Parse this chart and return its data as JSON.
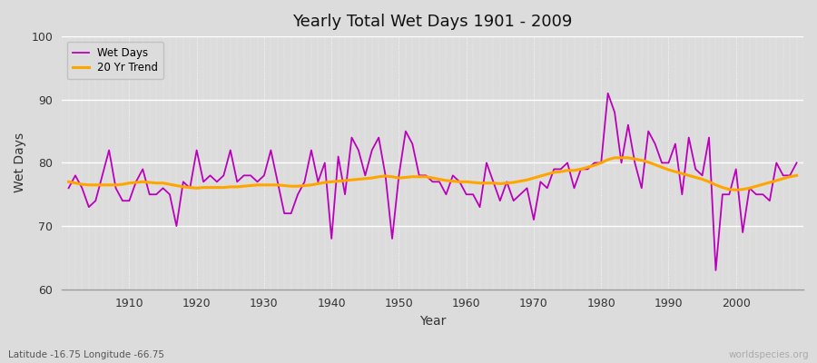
{
  "title": "Yearly Total Wet Days 1901 - 2009",
  "xlabel": "Year",
  "ylabel": "Wet Days",
  "subtitle": "Latitude -16.75 Longitude -66.75",
  "watermark": "worldspecies.org",
  "ylim": [
    60,
    100
  ],
  "yticks": [
    60,
    70,
    80,
    90,
    100
  ],
  "line_color": "#BB00BB",
  "trend_color": "#FFA500",
  "bg_color": "#DCDCDC",
  "plot_bg_color": "#DCDCDC",
  "legend_wet": "Wet Days",
  "legend_trend": "20 Yr Trend",
  "years": [
    1901,
    1902,
    1903,
    1904,
    1905,
    1906,
    1907,
    1908,
    1909,
    1910,
    1911,
    1912,
    1913,
    1914,
    1915,
    1916,
    1917,
    1918,
    1919,
    1920,
    1921,
    1922,
    1923,
    1924,
    1925,
    1926,
    1927,
    1928,
    1929,
    1930,
    1931,
    1932,
    1933,
    1934,
    1935,
    1936,
    1937,
    1938,
    1939,
    1940,
    1941,
    1942,
    1943,
    1944,
    1945,
    1946,
    1947,
    1948,
    1949,
    1950,
    1951,
    1952,
    1953,
    1954,
    1955,
    1956,
    1957,
    1958,
    1959,
    1960,
    1961,
    1962,
    1963,
    1964,
    1965,
    1966,
    1967,
    1968,
    1969,
    1970,
    1971,
    1972,
    1973,
    1974,
    1975,
    1976,
    1977,
    1978,
    1979,
    1980,
    1981,
    1982,
    1983,
    1984,
    1985,
    1986,
    1987,
    1988,
    1989,
    1990,
    1991,
    1992,
    1993,
    1994,
    1995,
    1996,
    1997,
    1998,
    1999,
    2000,
    2001,
    2002,
    2003,
    2004,
    2005,
    2006,
    2007,
    2008,
    2009
  ],
  "wet_days": [
    76,
    78,
    76,
    73,
    74,
    78,
    82,
    76,
    74,
    74,
    77,
    79,
    75,
    75,
    76,
    75,
    70,
    77,
    76,
    82,
    77,
    78,
    77,
    78,
    82,
    77,
    78,
    78,
    77,
    78,
    82,
    77,
    72,
    72,
    75,
    77,
    82,
    77,
    80,
    68,
    81,
    75,
    84,
    82,
    78,
    82,
    84,
    78,
    68,
    78,
    85,
    83,
    78,
    78,
    77,
    77,
    75,
    78,
    77,
    75,
    75,
    73,
    80,
    77,
    74,
    77,
    74,
    75,
    76,
    71,
    77,
    76,
    79,
    79,
    80,
    76,
    79,
    79,
    80,
    80,
    91,
    88,
    80,
    86,
    80,
    76,
    85,
    83,
    80,
    80,
    83,
    75,
    84,
    79,
    78,
    84,
    63,
    75,
    75,
    79,
    69,
    76,
    75,
    75,
    74,
    80,
    78,
    78,
    80
  ],
  "trend": [
    77.0,
    76.8,
    76.6,
    76.5,
    76.5,
    76.5,
    76.5,
    76.5,
    76.6,
    76.8,
    76.9,
    77.0,
    76.9,
    76.8,
    76.8,
    76.6,
    76.4,
    76.2,
    76.1,
    76.0,
    76.1,
    76.1,
    76.1,
    76.1,
    76.2,
    76.2,
    76.3,
    76.4,
    76.5,
    76.5,
    76.5,
    76.5,
    76.4,
    76.3,
    76.3,
    76.4,
    76.5,
    76.7,
    76.9,
    77.0,
    77.1,
    77.2,
    77.3,
    77.4,
    77.5,
    77.6,
    77.8,
    77.9,
    77.8,
    77.6,
    77.7,
    77.8,
    77.8,
    77.8,
    77.6,
    77.4,
    77.2,
    77.1,
    77.0,
    77.0,
    76.9,
    76.8,
    76.8,
    76.8,
    76.7,
    76.8,
    76.9,
    77.1,
    77.3,
    77.6,
    77.9,
    78.2,
    78.5,
    78.6,
    78.8,
    78.8,
    79.0,
    79.3,
    79.6,
    80.0,
    80.5,
    80.8,
    80.8,
    80.8,
    80.6,
    80.4,
    80.1,
    79.7,
    79.3,
    78.9,
    78.6,
    78.3,
    78.0,
    77.7,
    77.4,
    77.0,
    76.5,
    76.1,
    75.8,
    75.7,
    75.8,
    76.0,
    76.3,
    76.6,
    76.9,
    77.2,
    77.5,
    77.8,
    78.0
  ]
}
